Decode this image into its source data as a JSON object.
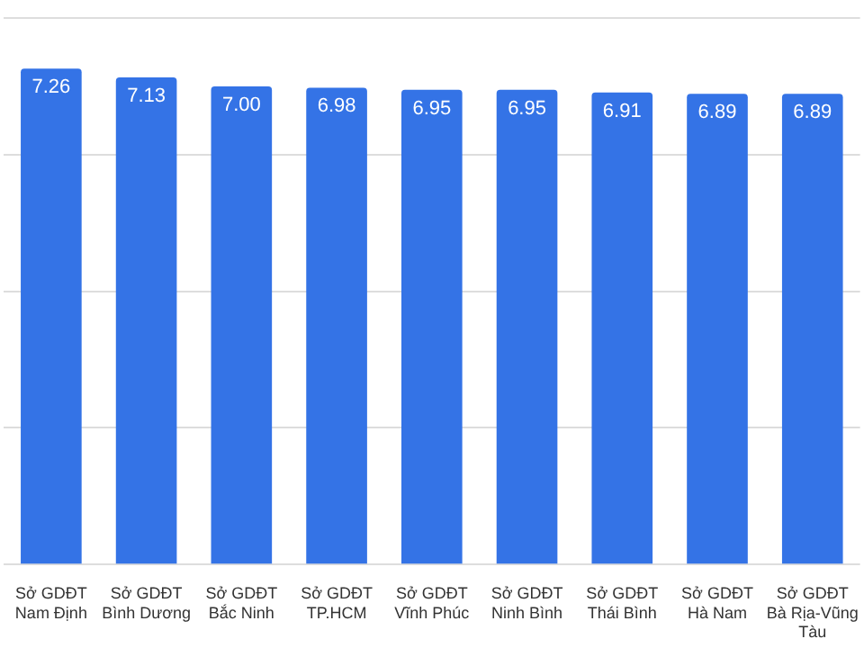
{
  "chart_data": {
    "type": "bar",
    "categories": [
      "Sở GDĐT Nam Định",
      "Sở GDĐT Bình Dương",
      "Sở GDĐT Bắc Ninh",
      "Sở GDĐT TP.HCM",
      "Sở GDĐT Vĩnh Phúc",
      "Sở GDĐT Ninh Bình",
      "Sở GDĐT Thái Bình",
      "Sở GDĐT Hà Nam",
      "Sở GDĐT Bà Rịa-Vũng Tàu"
    ],
    "values": [
      7.26,
      7.13,
      7.0,
      6.98,
      6.95,
      6.95,
      6.91,
      6.89,
      6.89
    ],
    "color": "#3473e6",
    "ylim": [
      0,
      8
    ],
    "yticks": [
      {
        "value": 0,
        "label": null
      },
      {
        "value": 2,
        "label": null
      },
      {
        "value": 4,
        "label": null
      },
      {
        "value": 6,
        "label": null
      },
      {
        "value": 8,
        "label": null
      }
    ],
    "value_labels": [
      "7.26",
      "7.13",
      "7.00",
      "6.98",
      "6.95",
      "6.95",
      "6.91",
      "6.89",
      "6.89"
    ],
    "grid": "y",
    "tick_labels": "x",
    "legend": false
  }
}
